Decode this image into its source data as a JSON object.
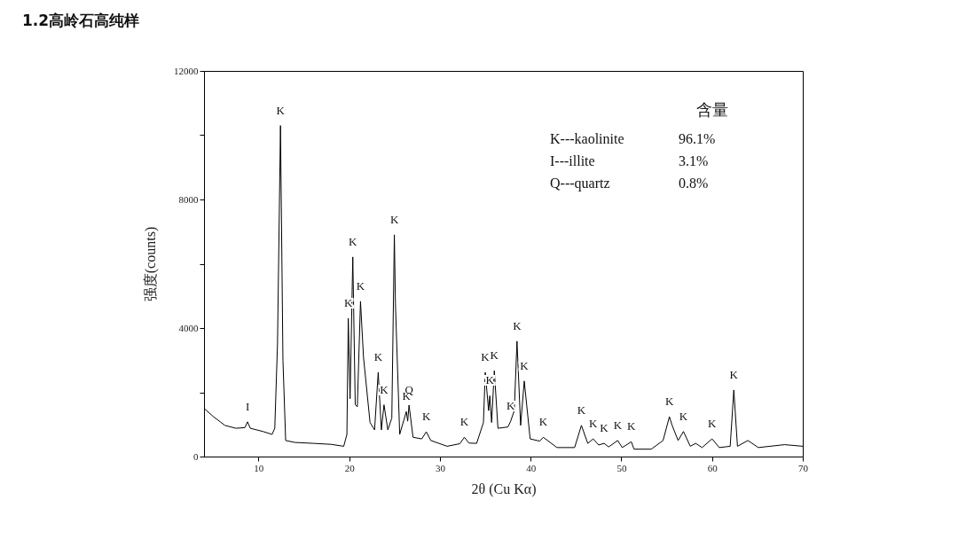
{
  "chart_data": {
    "type": "line",
    "title": "1.2高岭石高纯样",
    "xlabel": "2θ (Cu Kα)",
    "ylabel": "强度(counts)",
    "xlim": [
      4,
      70
    ],
    "xticks": [
      10,
      20,
      30,
      40,
      50,
      60,
      70
    ],
    "ylim": [
      0,
      12000
    ],
    "yticks": [
      0,
      {
        "value": 2000,
        "label": null
      },
      4000,
      {
        "value": 6000,
        "label": null
      },
      8000,
      {
        "value": 10000,
        "label": null
      },
      12000
    ],
    "grid": false,
    "marker": "none",
    "line_style": "solid",
    "series": [
      {
        "color": "#000000",
        "x": [
          4,
          5,
          6.3,
          7.5,
          8.5,
          8.8,
          9.1,
          10.5,
          11.5,
          11.8,
          12.1,
          12.43,
          12.7,
          13.0,
          14,
          16.1,
          18,
          19.4,
          19.75,
          19.9,
          20.1,
          20.4,
          20.67,
          20.9,
          21.25,
          21.58,
          22.3,
          22.8,
          23.2,
          23.55,
          23.84,
          24.26,
          24.7,
          24.98,
          25.1,
          25.57,
          26.3,
          26.45,
          26.6,
          27.04,
          28.0,
          28.5,
          29,
          30.8,
          32.2,
          32.7,
          33.2,
          34.05,
          34.8,
          35.0,
          35.37,
          35.5,
          35.7,
          36.0,
          36.4,
          37.5,
          37.8,
          38.2,
          38.5,
          38.9,
          39.3,
          39.95,
          41.0,
          41.4,
          42.9,
          44.85,
          45.6,
          46.3,
          46.9,
          47.5,
          48.1,
          48.6,
          49.6,
          50.1,
          51.1,
          51.4,
          53.3,
          54.6,
          55.3,
          55.6,
          56.26,
          56.85,
          57.6,
          58.2,
          58.9,
          60.0,
          60.8,
          62.0,
          62.4,
          62.8,
          63.95,
          65.1,
          68.0,
          70
        ],
        "values": [
          1500,
          1250,
          970,
          880,
          900,
          1080,
          880,
          780,
          690,
          880,
          3500,
          10300,
          3000,
          500,
          440,
          410,
          380,
          320,
          690,
          4300,
          1800,
          6210,
          1610,
          1550,
          4830,
          3090,
          1060,
          830,
          2620,
          830,
          1610,
          830,
          1200,
          6900,
          4750,
          690,
          1400,
          1100,
          1600,
          600,
          550,
          770,
          500,
          320,
          400,
          600,
          420,
          410,
          1060,
          2620,
          1430,
          1890,
          1060,
          2670,
          880,
          920,
          1100,
          1430,
          3590,
          970,
          2350,
          550,
          480,
          600,
          280,
          280,
          970,
          410,
          550,
          360,
          410,
          300,
          500,
          280,
          460,
          230,
          230,
          500,
          1240,
          970,
          500,
          780,
          320,
          410,
          280,
          550,
          280,
          320,
          2070,
          320,
          500,
          280,
          370,
          320
        ]
      }
    ],
    "annotations": [
      "含量",
      "K---kaolinite",
      "96.1%",
      "I---illite",
      "3.1%",
      "Q---quartz",
      "0.8%",
      {
        "text": "I",
        "x": 8.8,
        "y": 1080
      },
      {
        "text": "K",
        "x": 12.43,
        "y": 10300
      },
      {
        "text": "K",
        "x": 19.9,
        "y": 4300
      },
      {
        "text": "K",
        "x": 20.4,
        "y": 6210
      },
      {
        "text": "K",
        "x": 21.25,
        "y": 4830
      },
      {
        "text": "K",
        "x": 23.2,
        "y": 2620
      },
      {
        "text": "K",
        "x": 23.84,
        "y": 1610
      },
      {
        "text": "K",
        "x": 24.98,
        "y": 6900
      },
      {
        "text": "K",
        "x": 26.3,
        "y": 1400
      },
      {
        "text": "Q",
        "x": 26.6,
        "y": 1600
      },
      {
        "text": "K",
        "x": 28.5,
        "y": 770
      },
      {
        "text": "K",
        "x": 32.7,
        "y": 600
      },
      {
        "text": "K",
        "x": 35.0,
        "y": 2620
      },
      {
        "text": "K",
        "x": 35.5,
        "y": 1890
      },
      {
        "text": "K",
        "x": 36.0,
        "y": 2670
      },
      {
        "text": "K",
        "x": 37.8,
        "y": 1100
      },
      {
        "text": "K",
        "x": 38.5,
        "y": 3590
      },
      {
        "text": "K",
        "x": 39.3,
        "y": 2350
      },
      {
        "text": "K",
        "x": 41.4,
        "y": 600
      },
      {
        "text": "K",
        "x": 45.6,
        "y": 970
      },
      {
        "text": "K",
        "x": 46.9,
        "y": 550
      },
      {
        "text": "K",
        "x": 48.1,
        "y": 410
      },
      {
        "text": "K",
        "x": 49.6,
        "y": 500
      },
      {
        "text": "K",
        "x": 51.1,
        "y": 460
      },
      {
        "text": "K",
        "x": 55.3,
        "y": 1240
      },
      {
        "text": "K",
        "x": 56.85,
        "y": 780
      },
      {
        "text": "K",
        "x": 60.0,
        "y": 550
      },
      {
        "text": "K",
        "x": 62.4,
        "y": 2070
      }
    ]
  }
}
